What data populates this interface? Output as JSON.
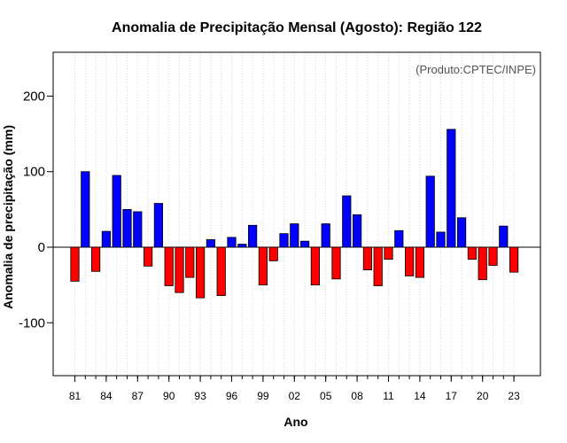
{
  "chart_data": {
    "type": "bar",
    "title": "Anomalia de Precipitação Mensal (Agosto): Região 122",
    "xlabel": "Ano",
    "ylabel": "Anomalia de precipitação (mm)",
    "annotation": "(Produto:CPTEC/INPE)",
    "ylim": [
      -170,
      258
    ],
    "yticks": [
      -100,
      0,
      100,
      200
    ],
    "xtick_labels": [
      "81",
      "84",
      "87",
      "90",
      "93",
      "96",
      "99",
      "02",
      "05",
      "08",
      "11",
      "14",
      "17",
      "20",
      "23"
    ],
    "years": [
      1981,
      1982,
      1983,
      1984,
      1985,
      1986,
      1987,
      1988,
      1989,
      1990,
      1991,
      1992,
      1993,
      1994,
      1995,
      1996,
      1997,
      1998,
      1999,
      2000,
      2001,
      2002,
      2003,
      2004,
      2005,
      2006,
      2007,
      2008,
      2009,
      2010,
      2011,
      2012,
      2013,
      2014,
      2015,
      2016,
      2017,
      2018,
      2019,
      2020,
      2021,
      2022,
      2023
    ],
    "values": [
      -45,
      100,
      -32,
      21,
      95,
      50,
      47,
      -25,
      58,
      -51,
      -60,
      -40,
      -67,
      10,
      -64,
      13,
      4,
      29,
      -50,
      -18,
      18,
      31,
      8,
      -50,
      31,
      -42,
      68,
      43,
      -30,
      -51,
      -16,
      22,
      -38,
      -40,
      94,
      20,
      156,
      39,
      -16,
      -43,
      -24,
      28,
      -33
    ],
    "grid": true,
    "colors": {
      "positive": "#0000ff",
      "negative": "#ff0000",
      "grid": "#d3d3d3",
      "zero_line": "#000000"
    }
  }
}
